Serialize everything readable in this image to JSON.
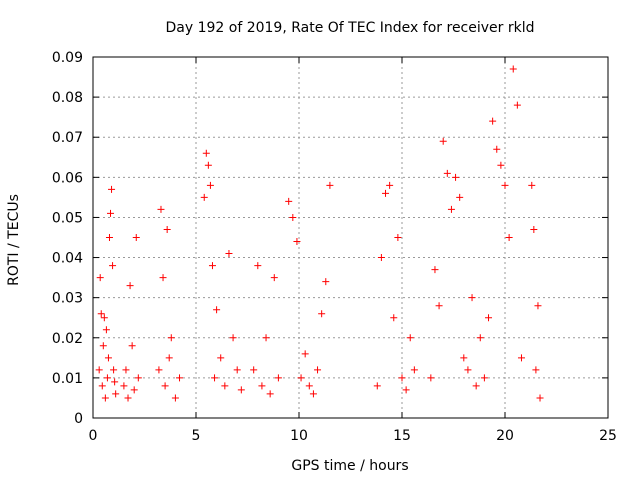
{
  "chart_data": {
    "type": "scatter",
    "title": "Day 192 of 2019, Rate Of TEC Index for receiver rkld",
    "xlabel": "GPS time / hours",
    "ylabel": "ROTI / TECUs",
    "xlim": [
      0,
      25
    ],
    "ylim": [
      0,
      0.09
    ],
    "x_ticks": [
      0,
      5,
      10,
      15,
      20,
      25
    ],
    "y_ticks": [
      0,
      0.01,
      0.02,
      0.03,
      0.04,
      0.05,
      0.06,
      0.07,
      0.08,
      0.09
    ],
    "x_tick_labels": [
      "0",
      "5",
      "10",
      "15",
      "20",
      "25"
    ],
    "y_tick_labels": [
      "0",
      "0.01",
      "0.02",
      "0.03",
      "0.04",
      "0.05",
      "0.06",
      "0.07",
      "0.08",
      "0.09"
    ],
    "grid": true,
    "marker": "+",
    "marker_color": "#ff0000",
    "series": [
      {
        "name": "ROTI",
        "x": [
          0.3,
          0.35,
          0.4,
          0.45,
          0.5,
          0.55,
          0.6,
          0.65,
          0.7,
          0.75,
          0.8,
          0.85,
          0.9,
          0.95,
          1.0,
          1.05,
          1.1,
          1.5,
          1.6,
          1.7,
          1.8,
          1.9,
          2.0,
          2.1,
          2.2,
          3.2,
          3.3,
          3.4,
          3.5,
          3.6,
          3.7,
          3.8,
          4.0,
          4.2,
          5.4,
          5.5,
          5.6,
          5.7,
          5.8,
          5.9,
          6.0,
          6.2,
          6.4,
          6.6,
          6.8,
          7.0,
          7.2,
          7.8,
          8.0,
          8.2,
          8.4,
          8.6,
          8.8,
          9.0,
          9.5,
          9.7,
          9.9,
          10.1,
          10.3,
          10.5,
          10.7,
          10.9,
          11.1,
          11.3,
          11.5,
          13.8,
          14.0,
          14.2,
          14.4,
          14.6,
          14.8,
          15.0,
          15.2,
          15.4,
          15.6,
          16.4,
          16.6,
          16.8,
          17.0,
          17.2,
          17.4,
          17.6,
          17.8,
          18.0,
          18.2,
          18.4,
          18.6,
          18.8,
          19.0,
          19.2,
          19.4,
          19.6,
          19.8,
          20.0,
          20.2,
          20.4,
          20.6,
          20.8,
          21.3,
          21.4,
          21.5,
          21.6,
          21.7
        ],
        "y": [
          0.012,
          0.035,
          0.026,
          0.008,
          0.018,
          0.025,
          0.005,
          0.022,
          0.01,
          0.015,
          0.045,
          0.051,
          0.057,
          0.038,
          0.012,
          0.009,
          0.006,
          0.008,
          0.012,
          0.005,
          0.033,
          0.018,
          0.007,
          0.045,
          0.01,
          0.012,
          0.052,
          0.035,
          0.008,
          0.047,
          0.015,
          0.02,
          0.005,
          0.01,
          0.055,
          0.066,
          0.063,
          0.058,
          0.038,
          0.01,
          0.027,
          0.015,
          0.008,
          0.041,
          0.02,
          0.012,
          0.007,
          0.012,
          0.038,
          0.008,
          0.02,
          0.006,
          0.035,
          0.01,
          0.054,
          0.05,
          0.044,
          0.01,
          0.016,
          0.008,
          0.006,
          0.012,
          0.026,
          0.034,
          0.058,
          0.008,
          0.04,
          0.056,
          0.058,
          0.025,
          0.045,
          0.01,
          0.007,
          0.02,
          0.012,
          0.01,
          0.037,
          0.028,
          0.069,
          0.061,
          0.052,
          0.06,
          0.055,
          0.015,
          0.012,
          0.03,
          0.008,
          0.02,
          0.01,
          0.025,
          0.074,
          0.067,
          0.063,
          0.058,
          0.045,
          0.087,
          0.078,
          0.015,
          0.058,
          0.047,
          0.012,
          0.028,
          0.005
        ]
      }
    ]
  }
}
